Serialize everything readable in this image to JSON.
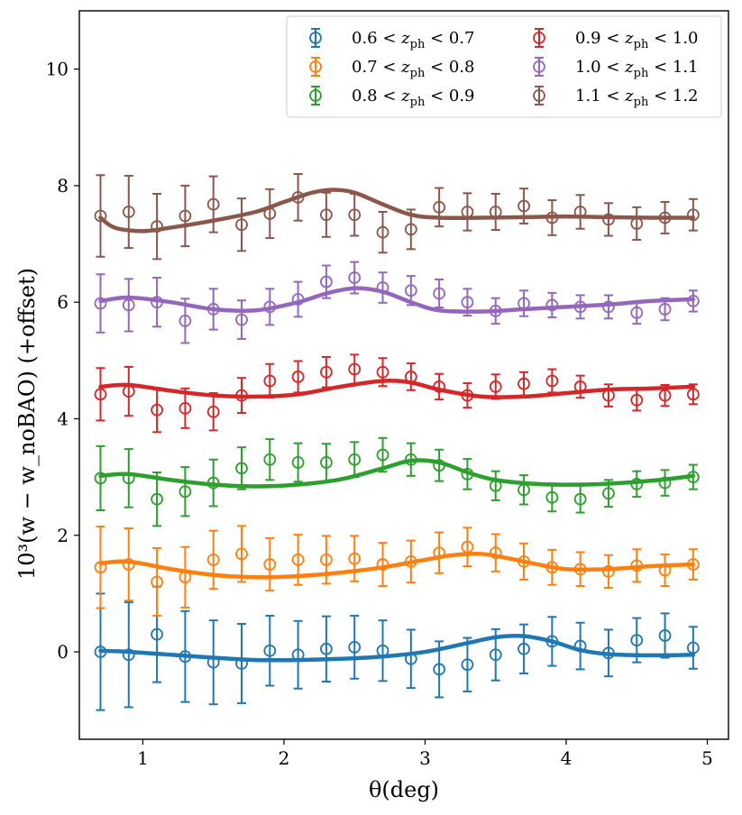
{
  "chart_data": {
    "type": "scatter",
    "xlabel": "θ(deg)",
    "ylabel": "10³(w − w_noBAO) (+offset)",
    "xlim": [
      0.55,
      5.15
    ],
    "ylim": [
      -1.5,
      11.0
    ],
    "xticks": [
      1,
      2,
      3,
      4,
      5
    ],
    "yticks": [
      0,
      2,
      4,
      6,
      8,
      10
    ],
    "grid": false,
    "legend_placement": "top-right",
    "legend_columns": 2,
    "x": [
      0.7,
      0.9,
      1.1,
      1.3,
      1.5,
      1.7,
      1.9,
      2.1,
      2.3,
      2.5,
      2.7,
      2.9,
      3.1,
      3.3,
      3.5,
      3.7,
      3.9,
      4.1,
      4.3,
      4.5,
      4.7,
      4.9
    ],
    "series": [
      {
        "name": "0.6 < z_ph < 0.7",
        "label_parts": [
          "0.6 < ",
          "z",
          "ph",
          " < 0.7"
        ],
        "color": "#1f77b4",
        "values": [
          0.0,
          -0.05,
          0.3,
          -0.08,
          -0.18,
          -0.2,
          0.02,
          -0.05,
          0.05,
          0.08,
          0.02,
          -0.12,
          -0.3,
          -0.22,
          -0.05,
          0.05,
          0.18,
          0.1,
          -0.02,
          0.2,
          0.28,
          0.07
        ],
        "errors": [
          1.0,
          0.9,
          0.82,
          0.78,
          0.72,
          0.68,
          0.6,
          0.58,
          0.56,
          0.54,
          0.52,
          0.5,
          0.48,
          0.46,
          0.44,
          0.42,
          0.42,
          0.4,
          0.4,
          0.38,
          0.38,
          0.36
        ],
        "model_x": [
          0.7,
          0.9,
          1.2,
          1.5,
          1.8,
          2.1,
          2.4,
          2.7,
          3.0,
          3.3,
          3.5,
          3.7,
          3.9,
          4.1,
          4.3,
          4.6,
          4.9
        ],
        "model_y": [
          0.02,
          0.0,
          -0.05,
          -0.1,
          -0.14,
          -0.14,
          -0.12,
          -0.08,
          0.0,
          0.15,
          0.25,
          0.27,
          0.18,
          0.03,
          -0.04,
          -0.06,
          -0.05
        ]
      },
      {
        "name": "0.7 < z_ph < 0.8",
        "label_parts": [
          "0.7 < ",
          "z",
          "ph",
          " < 0.8"
        ],
        "color": "#ff7f0e",
        "values": [
          1.45,
          1.5,
          1.2,
          1.28,
          1.58,
          1.68,
          1.5,
          1.58,
          1.58,
          1.6,
          1.5,
          1.55,
          1.7,
          1.8,
          1.7,
          1.55,
          1.45,
          1.42,
          1.38,
          1.48,
          1.4,
          1.5
        ],
        "errors": [
          0.7,
          0.62,
          0.58,
          0.52,
          0.5,
          0.48,
          0.45,
          0.43,
          0.41,
          0.39,
          0.37,
          0.36,
          0.35,
          0.33,
          0.32,
          0.31,
          0.3,
          0.29,
          0.28,
          0.28,
          0.27,
          0.26
        ],
        "model_x": [
          0.7,
          0.9,
          1.2,
          1.5,
          1.8,
          2.1,
          2.4,
          2.7,
          3.0,
          3.2,
          3.4,
          3.6,
          3.8,
          4.0,
          4.3,
          4.6,
          4.9
        ],
        "model_y": [
          1.52,
          1.55,
          1.42,
          1.32,
          1.28,
          1.3,
          1.36,
          1.45,
          1.58,
          1.66,
          1.68,
          1.6,
          1.5,
          1.42,
          1.42,
          1.47,
          1.5
        ]
      },
      {
        "name": "0.8 < z_ph < 0.9",
        "label_parts": [
          "0.8 < ",
          "z",
          "ph",
          " < 0.9"
        ],
        "color": "#2ca02c",
        "values": [
          2.98,
          2.98,
          2.62,
          2.75,
          2.9,
          3.15,
          3.3,
          3.25,
          3.25,
          3.3,
          3.38,
          3.3,
          3.2,
          3.05,
          2.85,
          2.78,
          2.65,
          2.62,
          2.72,
          2.88,
          2.9,
          3.0
        ],
        "errors": [
          0.55,
          0.5,
          0.46,
          0.42,
          0.4,
          0.36,
          0.35,
          0.33,
          0.32,
          0.3,
          0.29,
          0.28,
          0.27,
          0.26,
          0.25,
          0.25,
          0.24,
          0.23,
          0.23,
          0.22,
          0.22,
          0.21
        ],
        "model_x": [
          0.7,
          0.9,
          1.2,
          1.5,
          1.8,
          2.1,
          2.4,
          2.7,
          2.9,
          3.1,
          3.3,
          3.5,
          3.8,
          4.1,
          4.4,
          4.7,
          4.9
        ],
        "model_y": [
          3.02,
          3.05,
          2.95,
          2.87,
          2.84,
          2.87,
          2.96,
          3.15,
          3.28,
          3.25,
          3.08,
          2.95,
          2.88,
          2.87,
          2.9,
          2.96,
          3.02
        ]
      },
      {
        "name": "0.9 < z_ph < 1.0",
        "label_parts": [
          "0.9 < ",
          "z",
          "ph",
          " < 1.0"
        ],
        "color": "#d62728",
        "values": [
          4.42,
          4.47,
          4.15,
          4.18,
          4.12,
          4.4,
          4.65,
          4.72,
          4.8,
          4.85,
          4.8,
          4.72,
          4.55,
          4.4,
          4.55,
          4.6,
          4.65,
          4.55,
          4.4,
          4.32,
          4.4,
          4.42
        ],
        "errors": [
          0.45,
          0.42,
          0.38,
          0.34,
          0.32,
          0.3,
          0.29,
          0.27,
          0.26,
          0.25,
          0.24,
          0.23,
          0.22,
          0.21,
          0.21,
          0.2,
          0.2,
          0.19,
          0.19,
          0.18,
          0.18,
          0.17
        ],
        "model_x": [
          0.7,
          0.9,
          1.2,
          1.5,
          1.8,
          2.1,
          2.4,
          2.7,
          2.9,
          3.1,
          3.4,
          3.7,
          4.0,
          4.3,
          4.6,
          4.9
        ],
        "model_y": [
          4.55,
          4.58,
          4.48,
          4.4,
          4.38,
          4.42,
          4.55,
          4.65,
          4.62,
          4.5,
          4.38,
          4.38,
          4.44,
          4.5,
          4.52,
          4.55
        ]
      },
      {
        "name": "1.0 < z_ph < 1.1",
        "label_parts": [
          "1.0 < ",
          "z",
          "ph",
          " < 1.1"
        ],
        "color": "#9467bd",
        "values": [
          5.98,
          5.95,
          6.0,
          5.68,
          5.88,
          5.7,
          5.92,
          6.05,
          6.35,
          6.42,
          6.25,
          6.2,
          6.15,
          6.0,
          5.85,
          5.98,
          5.95,
          5.92,
          5.92,
          5.82,
          5.88,
          6.02
        ],
        "errors": [
          0.5,
          0.45,
          0.42,
          0.38,
          0.35,
          0.33,
          0.31,
          0.3,
          0.28,
          0.27,
          0.26,
          0.25,
          0.24,
          0.23,
          0.22,
          0.22,
          0.21,
          0.2,
          0.2,
          0.19,
          0.19,
          0.18
        ],
        "model_x": [
          0.7,
          0.9,
          1.2,
          1.5,
          1.8,
          2.1,
          2.3,
          2.5,
          2.7,
          2.9,
          3.1,
          3.4,
          3.7,
          4.0,
          4.3,
          4.6,
          4.9
        ],
        "model_y": [
          6.02,
          6.08,
          6.0,
          5.88,
          5.86,
          6.0,
          6.15,
          6.24,
          6.18,
          6.0,
          5.86,
          5.84,
          5.88,
          5.92,
          5.96,
          6.02,
          6.05
        ]
      },
      {
        "name": "1.1 < z_ph < 1.2",
        "label_parts": [
          "1.1 < ",
          "z",
          "ph",
          " < 1.2"
        ],
        "color": "#8c564b",
        "values": [
          7.48,
          7.55,
          7.3,
          7.48,
          7.68,
          7.33,
          7.52,
          7.8,
          7.5,
          7.5,
          7.2,
          7.25,
          7.63,
          7.55,
          7.55,
          7.65,
          7.45,
          7.55,
          7.42,
          7.35,
          7.45,
          7.5
        ],
        "errors": [
          0.7,
          0.62,
          0.56,
          0.52,
          0.48,
          0.45,
          0.42,
          0.4,
          0.38,
          0.36,
          0.35,
          0.34,
          0.33,
          0.32,
          0.31,
          0.3,
          0.3,
          0.29,
          0.28,
          0.28,
          0.27,
          0.27
        ],
        "model_x": [
          0.7,
          0.8,
          1.0,
          1.2,
          1.5,
          1.8,
          2.0,
          2.2,
          2.35,
          2.5,
          2.7,
          2.9,
          3.1,
          3.4,
          3.7,
          4.0,
          4.3,
          4.6,
          4.9
        ],
        "model_y": [
          7.45,
          7.28,
          7.22,
          7.28,
          7.4,
          7.55,
          7.72,
          7.88,
          7.93,
          7.88,
          7.68,
          7.5,
          7.45,
          7.45,
          7.46,
          7.47,
          7.46,
          7.45,
          7.45
        ]
      }
    ]
  }
}
